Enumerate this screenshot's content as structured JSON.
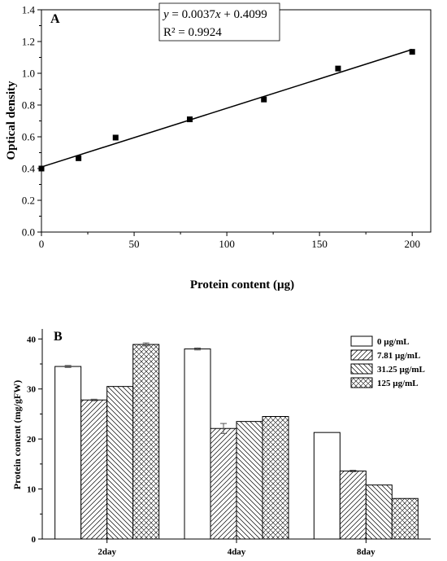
{
  "chart_data": [
    {
      "panel": "A",
      "type": "scatter",
      "xlabel": "Protein content (µg)",
      "ylabel": "Optical density",
      "xlim": [
        0,
        210
      ],
      "ylim": [
        0,
        1.4
      ],
      "xticks": [
        0,
        50,
        100,
        150,
        200
      ],
      "yticks": [
        0.0,
        0.2,
        0.4,
        0.6,
        0.8,
        1.0,
        1.2,
        1.4
      ],
      "points": [
        {
          "x": 0,
          "y": 0.4
        },
        {
          "x": 20,
          "y": 0.465
        },
        {
          "x": 40,
          "y": 0.595
        },
        {
          "x": 80,
          "y": 0.71
        },
        {
          "x": 120,
          "y": 0.835
        },
        {
          "x": 160,
          "y": 1.03
        },
        {
          "x": 200,
          "y": 1.135
        }
      ],
      "fit": {
        "slope": 0.0037,
        "intercept": 0.4099,
        "x_range": [
          0,
          200
        ]
      },
      "annotation": {
        "eq_y": "y",
        "eq_rest": " = 0.0037",
        "eq_x": "x",
        "eq_tail": " + 0.4099",
        "r2": "R² = 0.9924"
      }
    },
    {
      "panel": "B",
      "type": "bar",
      "ylabel": "Protein content (mg/gFW)",
      "ylim": [
        0,
        42
      ],
      "yticks": [
        0,
        10,
        20,
        30,
        40
      ],
      "categories": [
        "2day",
        "4day",
        "8day"
      ],
      "legend_position": "top-right",
      "series": [
        {
          "name": "0 µg/mL",
          "pattern": "none",
          "values": [
            34.5,
            38.0,
            21.3
          ],
          "errors": [
            0.2,
            0.2,
            0
          ]
        },
        {
          "name": "7.81 µg/mL",
          "pattern": "diag-right",
          "values": [
            27.8,
            22.1,
            13.6
          ],
          "errors": [
            0.15,
            1.0,
            0.15
          ]
        },
        {
          "name": "31.25 µg/mL",
          "pattern": "diag-left",
          "values": [
            30.5,
            23.5,
            10.8
          ],
          "errors": [
            0,
            0,
            0
          ]
        },
        {
          "name": "125 µg/mL",
          "pattern": "cross",
          "values": [
            38.9,
            24.5,
            8.1
          ],
          "errors": [
            0.3,
            0,
            0
          ]
        }
      ]
    }
  ]
}
